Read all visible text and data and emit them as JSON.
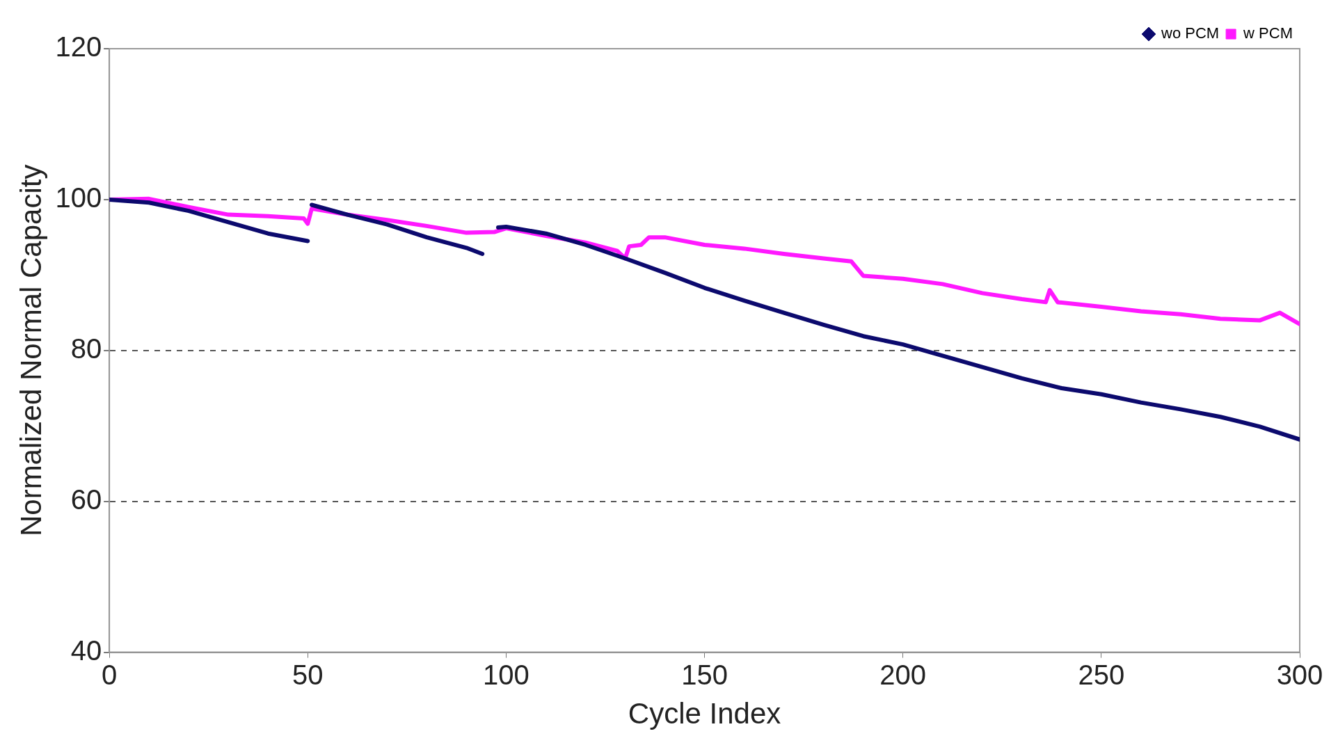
{
  "chart_data": {
    "type": "line",
    "xlabel": "Cycle Index",
    "ylabel": "Normalized Normal Capacity",
    "xlim": [
      0,
      300
    ],
    "xticks": [
      0,
      50,
      100,
      150,
      200,
      250,
      300
    ],
    "ylim": [
      40,
      120
    ],
    "yticks": [
      40,
      60,
      80,
      100,
      120
    ],
    "grid": "y",
    "legend": "top right",
    "marker": "none",
    "line_style": "solid",
    "series": [
      {
        "name": "wo PCM",
        "color": "#0c0a6e",
        "x": [
          0,
          10,
          20,
          30,
          40,
          50,
          50.5,
          51,
          60,
          70,
          80,
          90,
          94,
          96,
          98,
          100,
          110,
          120,
          130,
          140,
          150,
          160,
          170,
          180,
          190,
          200,
          210,
          220,
          230,
          240,
          250,
          260,
          270,
          280,
          290,
          300
        ],
        "values": [
          100,
          99.6,
          98.5,
          97,
          95.5,
          94.5,
          null,
          99.3,
          98,
          96.7,
          95,
          93.6,
          92.8,
          null,
          96.3,
          96.4,
          95.5,
          94,
          92.2,
          90.3,
          88.3,
          86.6,
          85,
          83.4,
          81.9,
          80.8,
          79.3,
          77.8,
          76.3,
          75,
          74.2,
          73.1,
          72.2,
          71.2,
          69.9,
          68.2
        ]
      },
      {
        "name": "w PCM",
        "color": "#ff19ff",
        "x": [
          0,
          10,
          20,
          30,
          40,
          49,
          50,
          51,
          60,
          70,
          80,
          90,
          97,
          100,
          110,
          120,
          128,
          130,
          131,
          134,
          136,
          140,
          150,
          160,
          170,
          180,
          187,
          190,
          200,
          210,
          220,
          230,
          236,
          237,
          239,
          250,
          260,
          270,
          280,
          290,
          295,
          300
        ],
        "values": [
          100,
          100.1,
          99,
          98,
          97.8,
          97.5,
          96.8,
          98.8,
          98,
          97.3,
          96.5,
          95.6,
          95.7,
          96.2,
          95.2,
          94.3,
          93.2,
          92.2,
          93.8,
          94,
          95,
          95,
          94,
          93.5,
          92.8,
          92.2,
          91.8,
          89.9,
          89.5,
          88.8,
          87.6,
          86.8,
          86.4,
          88,
          86.4,
          85.8,
          85.2,
          84.8,
          84.2,
          84,
          85,
          83.5
        ]
      }
    ]
  }
}
